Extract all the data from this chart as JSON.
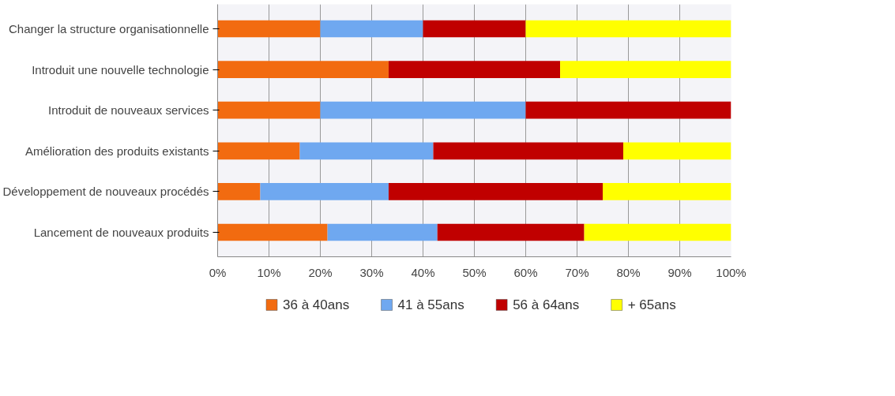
{
  "chart_data": {
    "type": "bar",
    "orientation": "horizontal",
    "stacked": true,
    "categories": [
      "Changer la structure organisationnelle",
      "Introduit une nouvelle technologie",
      "Introduit de nouveaux services",
      "Amélioration des produits existants",
      "Développement de nouveaux procédés",
      "Lancement de nouveaux produits"
    ],
    "series": [
      {
        "name": "36 à 40ans",
        "color": "#f26b10",
        "values": [
          20,
          33.3,
          20,
          16,
          8.3,
          21.4
        ]
      },
      {
        "name": "41 à 55ans",
        "color": "#6fa8f0",
        "values": [
          20,
          0,
          40,
          26,
          25,
          21.4
        ]
      },
      {
        "name": "56 à 64ans",
        "color": "#c00000",
        "values": [
          20,
          33.4,
          40,
          37,
          41.7,
          28.6
        ]
      },
      {
        "name": "+ 65ans",
        "color": "#ffff00",
        "values": [
          40,
          33.3,
          0,
          21,
          25,
          28.6
        ]
      }
    ],
    "xlim": [
      0,
      100
    ],
    "xticks": [
      {
        "value": 0,
        "label": "0%"
      },
      {
        "value": 10,
        "label": "10%"
      },
      {
        "value": 20,
        "label": "20%"
      },
      {
        "value": 30,
        "label": "30%"
      },
      {
        "value": 40,
        "label": "40%"
      },
      {
        "value": 50,
        "label": "50%"
      },
      {
        "value": 60,
        "label": "60%"
      },
      {
        "value": 70,
        "label": "70%"
      },
      {
        "value": 80,
        "label": "80%"
      },
      {
        "value": 90,
        "label": "90%"
      },
      {
        "value": 100,
        "label": "100%"
      }
    ],
    "grid": "x",
    "legend": "bottom"
  }
}
